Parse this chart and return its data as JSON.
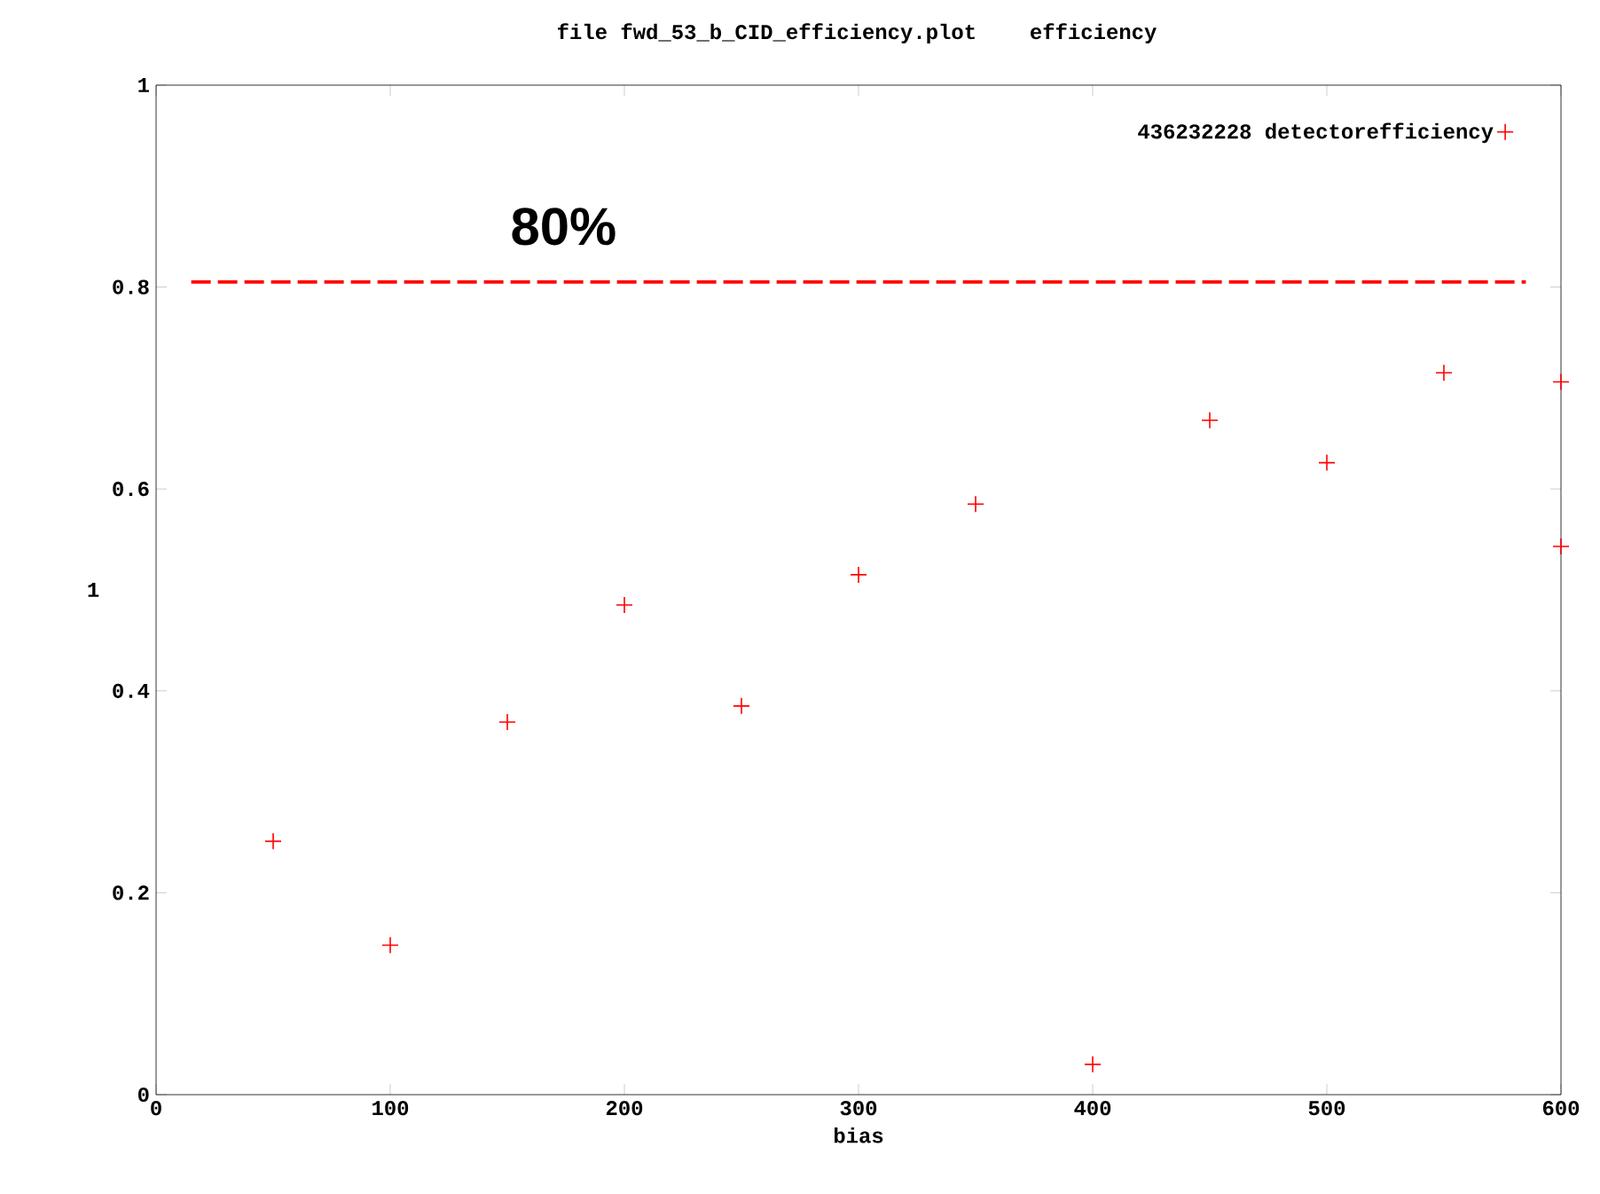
{
  "chart_data": {
    "type": "scatter",
    "title": "file fwd_53_b_CID_efficiency.plot",
    "subtitle": "efficiency",
    "xlabel": "bias",
    "ylabel": "1",
    "xlim": [
      0,
      600
    ],
    "ylim": [
      0,
      1
    ],
    "xticks": [
      0,
      100,
      200,
      300,
      400,
      500,
      600
    ],
    "yticks": [
      0,
      0.2,
      0.4,
      0.6,
      0.8,
      1
    ],
    "legend": "top right",
    "annotations": [
      "80%"
    ],
    "series": [
      {
        "name": "436232228 detectorefficiency",
        "color": "#ff0000",
        "marker": "cross",
        "x": [
          50,
          100,
          150,
          200,
          250,
          300,
          350,
          400,
          450,
          500,
          550,
          600,
          600
        ],
        "values": [
          0.251,
          0.148,
          0.369,
          0.485,
          0.385,
          0.515,
          0.585,
          0.03,
          0.668,
          0.626,
          0.715,
          0.706,
          0.543
        ]
      },
      {
        "type": "line",
        "color": "#ff0000",
        "line_style": "dashed",
        "marker": "none",
        "x": [
          15,
          585
        ],
        "values": [
          0.805,
          0.805
        ]
      }
    ]
  }
}
